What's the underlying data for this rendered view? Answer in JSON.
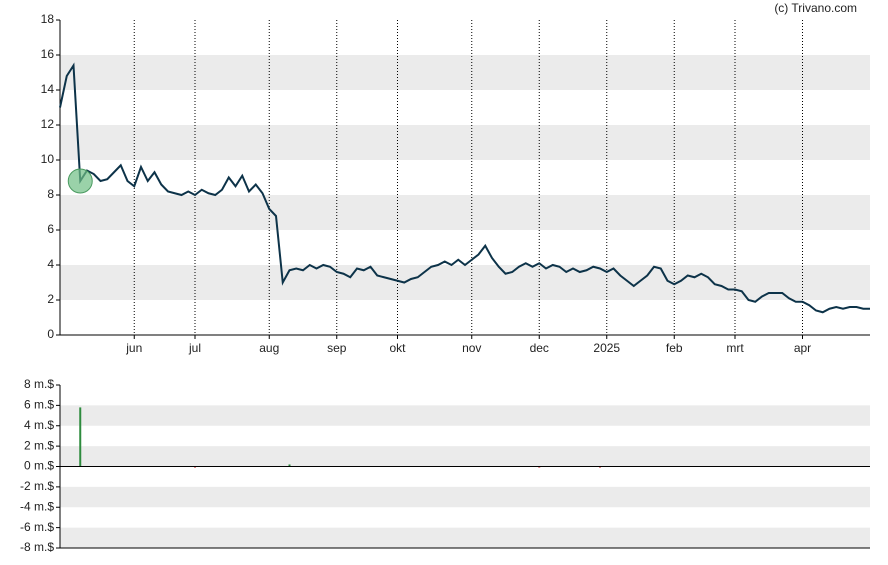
{
  "source": "(c) Trivano.com",
  "chart_data": [
    {
      "type": "line",
      "color": "#0d3349",
      "grid": "bands",
      "highlight_index": 3,
      "highlight_color": "#6fbf85",
      "xlim": [
        0,
        120
      ],
      "xticks": [
        {
          "value": 11,
          "label": "jun"
        },
        {
          "value": 20,
          "label": "jul"
        },
        {
          "value": 31,
          "label": "aug"
        },
        {
          "value": 41,
          "label": "sep"
        },
        {
          "value": 50,
          "label": "okt"
        },
        {
          "value": 61,
          "label": "nov"
        },
        {
          "value": 71,
          "label": "dec"
        },
        {
          "value": 81,
          "label": "2025"
        },
        {
          "value": 91,
          "label": "feb"
        },
        {
          "value": 100,
          "label": "mrt"
        },
        {
          "value": 110,
          "label": "apr"
        }
      ],
      "ylim": [
        0,
        18
      ],
      "yticks": [
        0,
        2,
        4,
        6,
        8,
        10,
        12,
        14,
        16,
        18
      ],
      "values": [
        13,
        14.8,
        15.4,
        8.8,
        9.4,
        9.2,
        8.8,
        8.9,
        9.3,
        9.7,
        8.8,
        8.5,
        9.6,
        8.8,
        9.3,
        8.6,
        8.2,
        8.1,
        8.0,
        8.2,
        8.0,
        8.3,
        8.1,
        8.0,
        8.3,
        9.0,
        8.5,
        9.1,
        8.2,
        8.6,
        8.1,
        7.2,
        6.8,
        3.0,
        3.7,
        3.8,
        3.7,
        4.0,
        3.8,
        4.0,
        3.9,
        3.6,
        3.5,
        3.3,
        3.8,
        3.7,
        3.9,
        3.4,
        3.3,
        3.2,
        3.1,
        3.0,
        3.2,
        3.3,
        3.6,
        3.9,
        4.0,
        4.2,
        4.0,
        4.3,
        4.0,
        4.3,
        4.6,
        5.1,
        4.4,
        3.9,
        3.5,
        3.6,
        3.9,
        4.1,
        3.9,
        4.1,
        3.8,
        4.0,
        3.9,
        3.6,
        3.8,
        3.6,
        3.7,
        3.9,
        3.8,
        3.6,
        3.8,
        3.4,
        3.1,
        2.8,
        3.1,
        3.4,
        3.9,
        3.8,
        3.1,
        2.9,
        3.1,
        3.4,
        3.3,
        3.5,
        3.3,
        2.9,
        2.8,
        2.6,
        2.6,
        2.5,
        2.0,
        1.9,
        2.2,
        2.4,
        2.4,
        2.4,
        2.1,
        1.9,
        1.9,
        1.7,
        1.4,
        1.3,
        1.5,
        1.6,
        1.5,
        1.6,
        1.6,
        1.5,
        1.5
      ]
    },
    {
      "type": "bar",
      "grid": "bands",
      "up_color": "#2e8b3e",
      "down_color": "#cc2222",
      "xlim": [
        0,
        120
      ],
      "ylim": [
        -8,
        8
      ],
      "yticks": [
        {
          "value": -8,
          "label": "-8 m.$"
        },
        {
          "value": -6,
          "label": "-6 m.$"
        },
        {
          "value": -4,
          "label": "-4 m.$"
        },
        {
          "value": -2,
          "label": "-2 m.$"
        },
        {
          "value": 0,
          "label": "0 m.$"
        },
        {
          "value": 2,
          "label": "2 m.$"
        },
        {
          "value": 4,
          "label": "4 m.$"
        },
        {
          "value": 6,
          "label": "6 m.$"
        },
        {
          "value": 8,
          "label": "8 m.$"
        }
      ],
      "x": [
        3,
        20,
        34,
        71,
        80
      ],
      "values": [
        5.8,
        -0.1,
        0.2,
        -0.1,
        -0.1
      ]
    }
  ]
}
